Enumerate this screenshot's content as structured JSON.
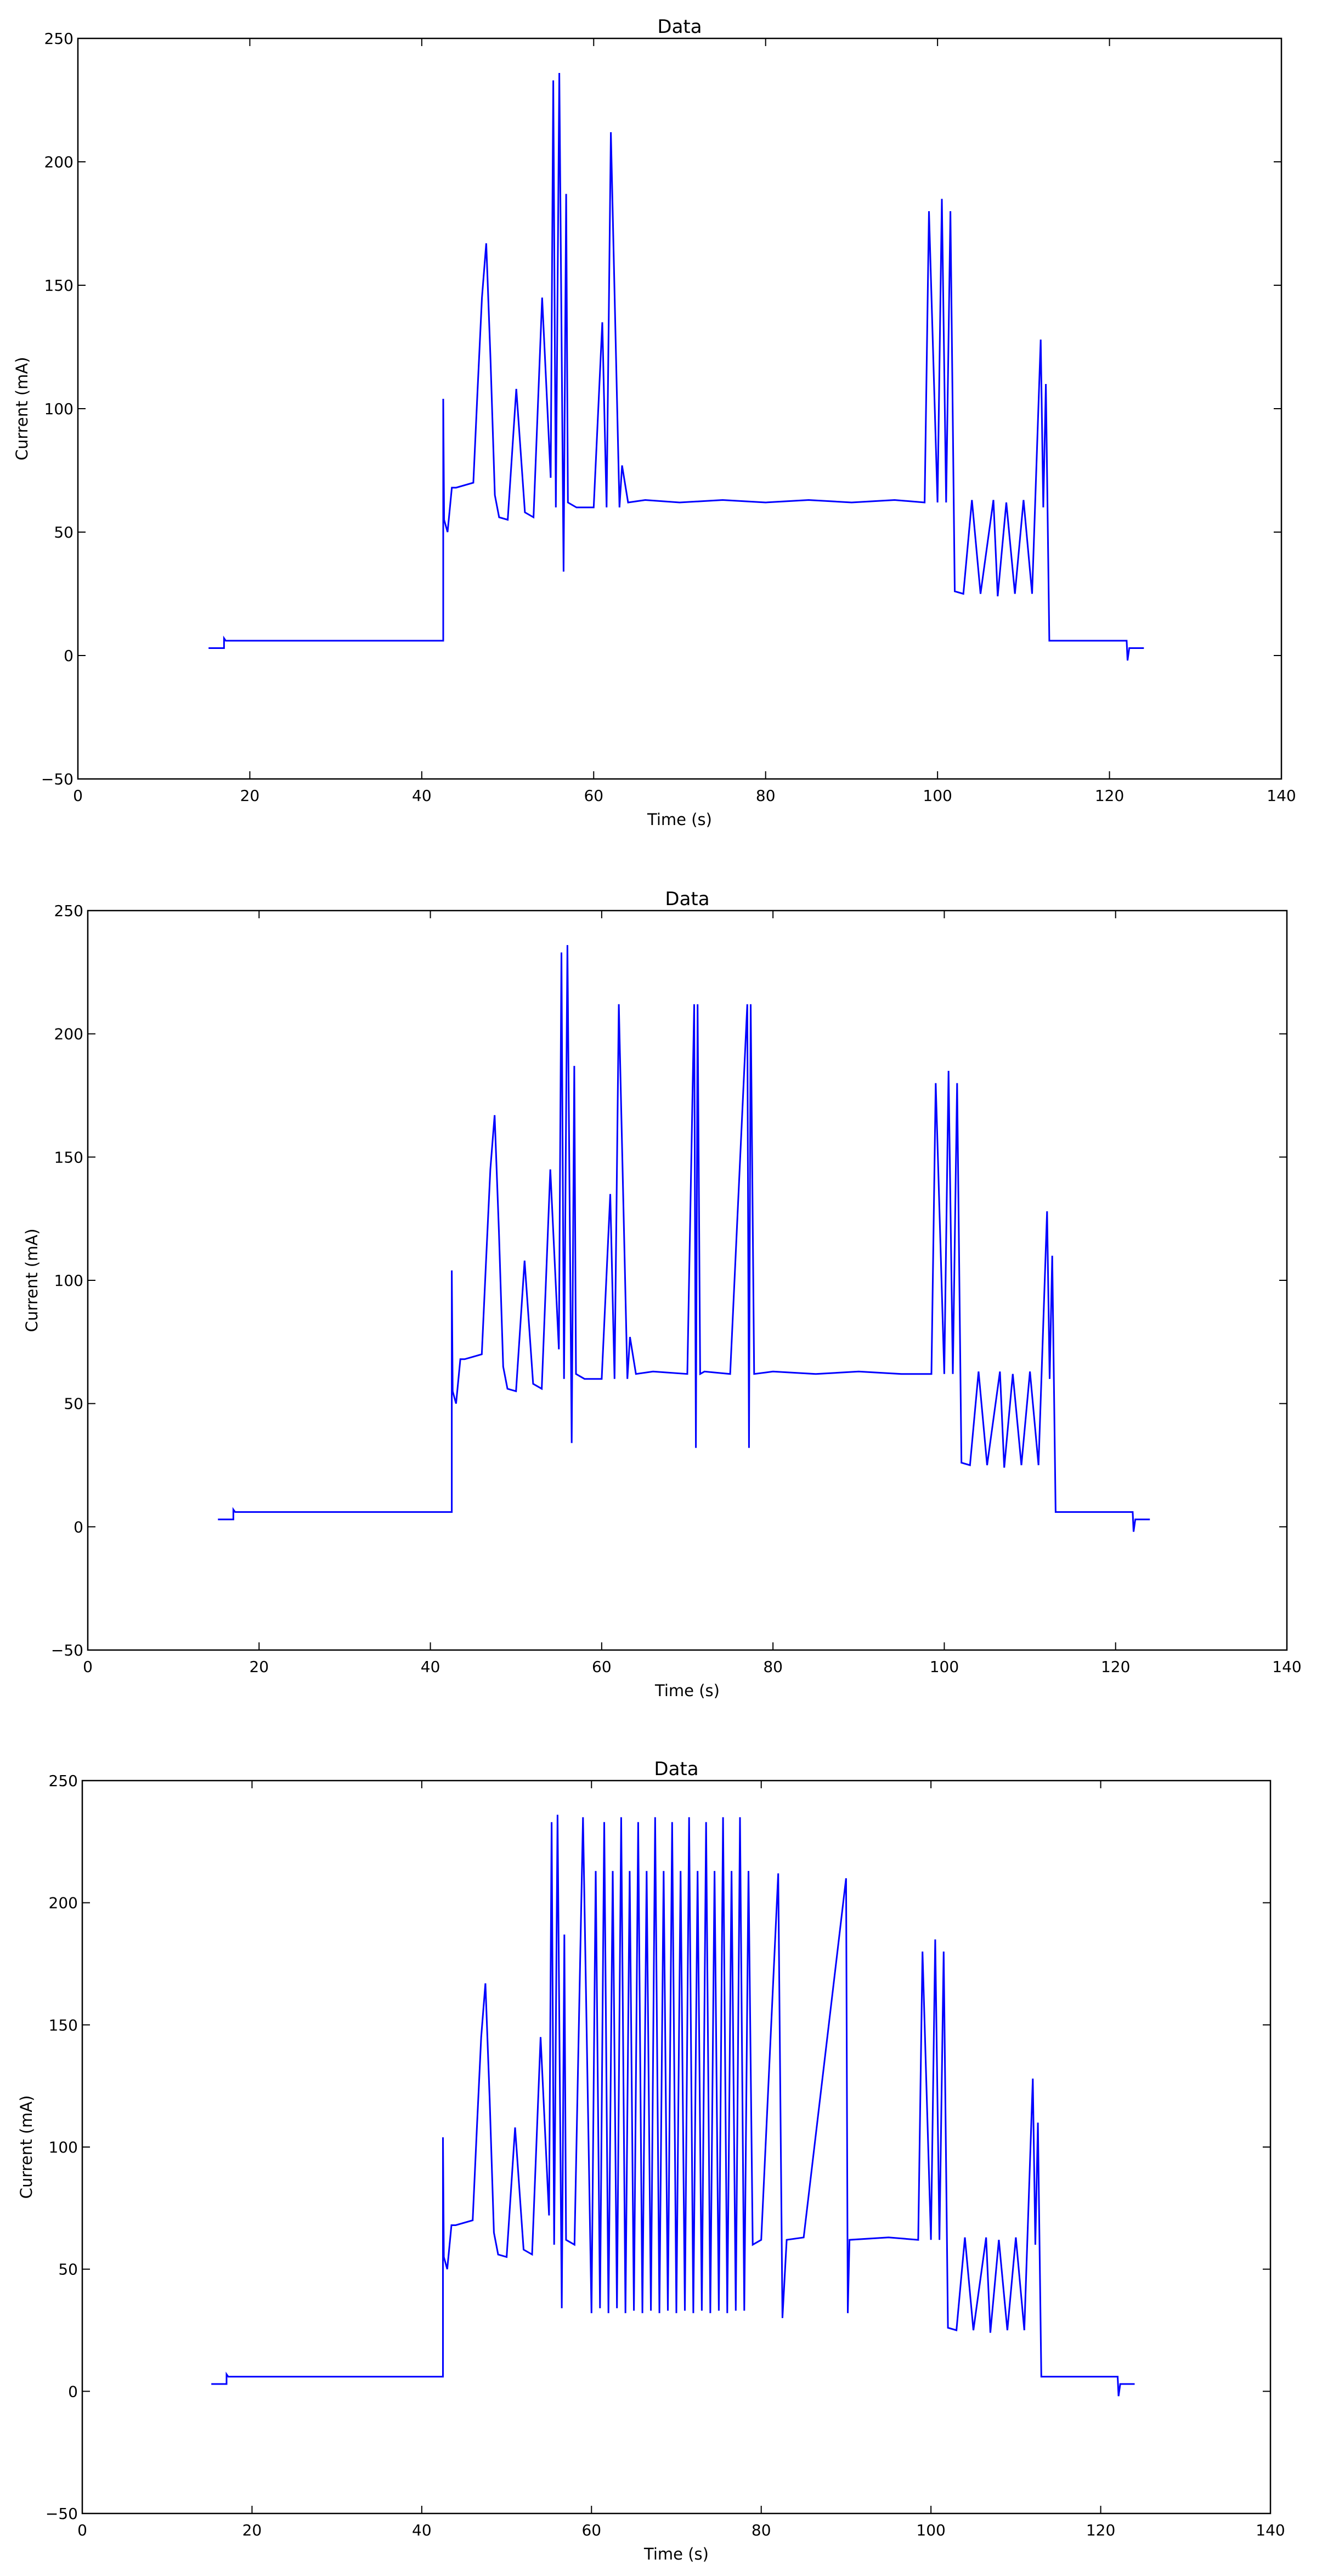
{
  "chart_data": [
    {
      "type": "line",
      "title": "Data",
      "xlabel": "Time (s)",
      "ylabel": "Current (mA)",
      "xlim": [
        0,
        140
      ],
      "ylim": [
        -50,
        250
      ],
      "xticks": [
        0,
        20,
        40,
        60,
        80,
        100,
        120,
        140
      ],
      "yticks": [
        -50,
        0,
        50,
        100,
        150,
        200,
        250
      ],
      "grid": false,
      "color": "#0000ff",
      "series": [
        {
          "x": [
            15.2,
            17.0,
            17.0,
            17.2,
            42.5,
            42.5,
            42.6,
            43.0,
            43.5,
            44.0,
            46.0,
            46.5,
            47.0,
            47.5,
            48.0,
            48.5,
            49.0,
            50.0,
            51.0,
            52.0,
            53.0,
            54.0,
            55.0,
            55.3,
            55.6,
            56.0,
            56.5,
            56.8,
            57.0,
            58.0,
            60.0,
            61.0,
            61.5,
            62.0,
            63.0,
            63.3,
            64.0,
            66.0,
            70.0,
            75.0,
            80.0,
            85.0,
            90.0,
            95.0,
            98.5,
            99.0,
            100.0,
            100.5,
            101.0,
            101.5,
            102.0,
            103.0,
            104.0,
            105.0,
            106.5,
            107.0,
            108.0,
            109.0,
            110.0,
            111.0,
            112.0,
            112.3,
            112.6,
            113.0,
            118.0,
            122.0,
            122.1,
            122.3,
            124.0
          ],
          "y": [
            3,
            3,
            7,
            6,
            6,
            104,
            55,
            50,
            68,
            68,
            70,
            108,
            145,
            167,
            120,
            65,
            56,
            55,
            108,
            58,
            56,
            145,
            72,
            233,
            60,
            236,
            34,
            187,
            62,
            60,
            60,
            135,
            60,
            212,
            60,
            77,
            62,
            63,
            62,
            63,
            62,
            63,
            62,
            63,
            62,
            180,
            62,
            185,
            62,
            180,
            26,
            25,
            63,
            25,
            63,
            24,
            62,
            25,
            63,
            25,
            128,
            60,
            110,
            6,
            6,
            6,
            -2,
            3,
            3
          ]
        }
      ]
    },
    {
      "type": "line",
      "title": "Data",
      "xlabel": "Time (s)",
      "ylabel": "Current (mA)",
      "xlim": [
        0,
        140
      ],
      "ylim": [
        -50,
        250
      ],
      "xticks": [
        0,
        20,
        40,
        60,
        80,
        100,
        120,
        140
      ],
      "yticks": [
        -50,
        0,
        50,
        100,
        150,
        200,
        250
      ],
      "grid": false,
      "color": "#0000ff",
      "series": [
        {
          "x": [
            15.2,
            17.0,
            17.0,
            17.2,
            42.5,
            42.5,
            42.6,
            43.0,
            43.5,
            44.0,
            46.0,
            46.5,
            47.0,
            47.5,
            48.0,
            48.5,
            49.0,
            50.0,
            51.0,
            52.0,
            53.0,
            54.0,
            55.0,
            55.3,
            55.6,
            56.0,
            56.5,
            56.8,
            57.0,
            58.0,
            60.0,
            61.0,
            61.5,
            62.0,
            63.0,
            63.3,
            64.0,
            66.0,
            70.0,
            70.8,
            71.0,
            71.2,
            71.5,
            72.0,
            75.0,
            77.0,
            77.2,
            77.4,
            77.8,
            80.0,
            85.0,
            90.0,
            95.0,
            98.5,
            99.0,
            100.0,
            100.5,
            101.0,
            101.5,
            102.0,
            103.0,
            104.0,
            105.0,
            106.5,
            107.0,
            108.0,
            109.0,
            110.0,
            111.0,
            112.0,
            112.3,
            112.6,
            113.0,
            118.0,
            122.0,
            122.1,
            122.3,
            124.0
          ],
          "y": [
            3,
            3,
            7,
            6,
            6,
            104,
            55,
            50,
            68,
            68,
            70,
            108,
            145,
            167,
            120,
            65,
            56,
            55,
            108,
            58,
            56,
            145,
            72,
            233,
            60,
            236,
            34,
            187,
            62,
            60,
            60,
            135,
            60,
            212,
            60,
            77,
            62,
            63,
            62,
            212,
            32,
            212,
            62,
            63,
            62,
            212,
            32,
            212,
            62,
            63,
            62,
            63,
            62,
            62,
            180,
            62,
            185,
            62,
            180,
            26,
            25,
            63,
            25,
            63,
            24,
            62,
            25,
            63,
            25,
            128,
            60,
            110,
            6,
            6,
            6,
            -2,
            3,
            3
          ]
        }
      ]
    },
    {
      "type": "line",
      "title": "Data",
      "xlabel": "Time (s)",
      "ylabel": "Current (mA)",
      "xlim": [
        0,
        140
      ],
      "ylim": [
        -50,
        250
      ],
      "xticks": [
        0,
        20,
        40,
        60,
        80,
        100,
        120,
        140
      ],
      "yticks": [
        -50,
        0,
        50,
        100,
        150,
        200,
        250
      ],
      "grid": false,
      "color": "#0000ff",
      "series": [
        {
          "x": [
            15.2,
            17.0,
            17.0,
            17.2,
            42.5,
            42.5,
            42.6,
            43.0,
            43.5,
            44.0,
            46.0,
            46.5,
            47.0,
            47.5,
            48.0,
            48.5,
            49.0,
            50.0,
            51.0,
            52.0,
            53.0,
            54.0,
            55.0,
            55.3,
            55.6,
            56.0,
            56.5,
            56.8,
            57.0,
            58.0,
            59.0,
            60.0,
            60.5,
            61.0,
            61.5,
            62.0,
            62.5,
            63.0,
            63.5,
            64.0,
            64.5,
            65.0,
            65.5,
            66.0,
            66.5,
            67.0,
            67.5,
            68.0,
            68.5,
            69.0,
            69.5,
            70.0,
            70.5,
            71.0,
            71.5,
            72.0,
            72.5,
            73.0,
            73.5,
            74.0,
            74.5,
            75.0,
            75.5,
            76.0,
            76.5,
            77.0,
            77.5,
            78.0,
            78.5,
            79.0,
            80.0,
            82.0,
            82.5,
            83.0,
            85.0,
            90.0,
            90.2,
            90.4,
            95.0,
            98.5,
            99.0,
            100.0,
            100.5,
            101.0,
            101.5,
            102.0,
            103.0,
            104.0,
            105.0,
            106.5,
            107.0,
            108.0,
            109.0,
            110.0,
            111.0,
            112.0,
            112.3,
            112.6,
            113.0,
            118.0,
            122.0,
            122.1,
            122.3,
            124.0
          ],
          "y": [
            3,
            3,
            7,
            6,
            6,
            104,
            55,
            50,
            68,
            68,
            70,
            108,
            145,
            167,
            120,
            65,
            56,
            55,
            108,
            58,
            56,
            145,
            72,
            233,
            60,
            236,
            34,
            187,
            62,
            60,
            235,
            32,
            213,
            34,
            233,
            32,
            213,
            34,
            235,
            32,
            213,
            33,
            233,
            32,
            213,
            33,
            235,
            32,
            213,
            33,
            233,
            32,
            213,
            33,
            235,
            32,
            213,
            33,
            233,
            32,
            213,
            33,
            235,
            32,
            213,
            33,
            235,
            33,
            213,
            60,
            62,
            212,
            30,
            62,
            63,
            210,
            32,
            62,
            63,
            62,
            180,
            62,
            185,
            62,
            180,
            26,
            25,
            63,
            25,
            63,
            24,
            62,
            25,
            63,
            25,
            128,
            60,
            110,
            6,
            6,
            6,
            -2,
            3,
            3
          ]
        }
      ]
    }
  ]
}
